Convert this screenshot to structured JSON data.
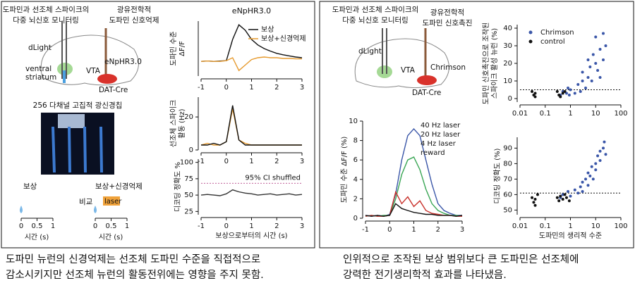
{
  "panels": {
    "left": {
      "title": [
        "도파민과 선조체 스파이크의",
        "다중 뇌신호 모니터링"
      ],
      "condition": [
        "광유전학적",
        "도파민 신호억제"
      ],
      "labels": {
        "sensor": "dLight",
        "region": [
          "ventral",
          "striatum"
        ],
        "opsin": "eNpHR3.0",
        "vta": "VTA",
        "line": "DAT-Cre"
      },
      "chip": "256 다채널 고집적 광신경칩",
      "stim": {
        "reward": "보상",
        "combined": "보상+신경억제",
        "compare": "비교",
        "laser": "laser",
        "xticks": [
          0,
          0.5,
          1
        ],
        "xlabel": "시간 (s)"
      },
      "caption": [
        "도파민 뉴런의 신경억제는 선조체 도파민 수준을 직접적으로",
        "감소시키지만 선조체 뉴런의 활동전위에는 영향을 주지 못함."
      ]
    },
    "right": {
      "title": [
        "도파민과 선조체 스파이크의",
        "다중 뇌신호 모니터링"
      ],
      "condition": [
        "광유전학적",
        "도파민 신호촉진"
      ],
      "labels": {
        "sensor": "dLight",
        "vta": "VTA",
        "opsin": "Chrimson",
        "line": "DAT-Cre"
      },
      "caption": [
        "인위적으로 조작된 보상 범위보다 큰 도파민은 선조체에",
        "강력한 전기생리학적 효과를 나타냈음."
      ]
    }
  },
  "chart_data": [
    {
      "type": "line",
      "title": "eNpHR3.0",
      "ylabel": [
        "도파민 수준",
        "ΔF/F"
      ],
      "legend": "upper right",
      "x": [
        -1,
        -0.75,
        -0.5,
        -0.25,
        0,
        0.25,
        0.5,
        0.75,
        1,
        1.25,
        1.5,
        1.75,
        2,
        2.25,
        2.5,
        2.75,
        3
      ],
      "xlim": [
        -1,
        3
      ],
      "xticks": [
        -1,
        0,
        1,
        2,
        3
      ],
      "ylim": [
        -0.4,
        1.1
      ],
      "series": [
        {
          "name": "보상",
          "color": "#111111",
          "values": [
            0,
            0.01,
            0,
            0.01,
            0.02,
            0.6,
            1.0,
            0.85,
            0.6,
            0.45,
            0.35,
            0.28,
            0.22,
            0.18,
            0.15,
            0.12,
            0.1
          ]
        },
        {
          "name": "보상+신경억제",
          "color": "#e69a2e",
          "values": [
            0,
            0.01,
            0,
            0,
            0.02,
            0.1,
            -0.25,
            -0.1,
            0.05,
            0.1,
            0.12,
            0.1,
            0.1,
            0.08,
            0.08,
            0.07,
            0.07
          ]
        }
      ]
    },
    {
      "type": "line",
      "ylabel": [
        "선조체 스파이크",
        "활동 (Hz)"
      ],
      "x": [
        -1,
        -0.75,
        -0.5,
        -0.25,
        0,
        0.25,
        0.5,
        0.75,
        1,
        1.25,
        1.5,
        1.75,
        2,
        2.25,
        2.5,
        2.75,
        3
      ],
      "xlim": [
        -1,
        3
      ],
      "xticks": [
        -1,
        0,
        1,
        2,
        3
      ],
      "ylim": [
        0,
        32
      ],
      "yticks": [
        0,
        20
      ],
      "series": [
        {
          "color": "#e69a2e",
          "values": [
            3,
            4,
            3,
            3,
            5,
            25,
            6,
            4,
            3,
            3,
            3,
            3,
            3,
            3,
            3,
            3,
            3
          ]
        },
        {
          "color": "#111111",
          "values": [
            3,
            3,
            4,
            3,
            5,
            27,
            6,
            3,
            3,
            3,
            3,
            3,
            3,
            3,
            3,
            3,
            3
          ]
        }
      ]
    },
    {
      "type": "line",
      "ylabel": [
        "디코딩 정확도 %"
      ],
      "xlabel": "보상으로부터의 시간 (s)",
      "x": [
        -1,
        -0.75,
        -0.5,
        -0.25,
        0,
        0.25,
        0.5,
        0.75,
        1,
        1.25,
        1.5,
        1.75,
        2,
        2.25,
        2.5,
        2.75,
        3
      ],
      "xlim": [
        -1,
        3
      ],
      "xticks": [
        -1,
        0,
        1,
        2,
        3
      ],
      "ylim": [
        20,
        105
      ],
      "yticks": [
        25,
        50,
        75,
        100
      ],
      "reference_lines": [
        {
          "value": 68,
          "label": "95% CI shuffled",
          "color": "#c0609a"
        }
      ],
      "series": [
        {
          "color": "#333333",
          "values": [
            50,
            51,
            50,
            49,
            52,
            58,
            55,
            53,
            52,
            50,
            51,
            52,
            50,
            51,
            52,
            50,
            51
          ]
        }
      ]
    },
    {
      "type": "line",
      "ylabel": [
        "도파민 수준 ΔF/F (%)"
      ],
      "legend": "upper right",
      "legend_text_colored": true,
      "x": [
        -1,
        -0.75,
        -0.5,
        -0.25,
        0,
        0.25,
        0.5,
        0.75,
        1,
        1.25,
        1.5,
        1.75,
        2,
        2.25,
        2.5,
        2.75,
        3
      ],
      "xlim": [
        -1,
        3
      ],
      "xticks": [
        -1,
        0,
        1,
        2,
        3
      ],
      "ylim": [
        0,
        10
      ],
      "yticks": [
        0,
        2,
        4,
        6,
        8,
        10
      ],
      "series": [
        {
          "name": "40 Hz laser",
          "color": "#3a56a8",
          "values": [
            0.3,
            0.2,
            0.3,
            0.2,
            0.4,
            2.5,
            6,
            8.5,
            9.2,
            8.5,
            6,
            3.5,
            1.5,
            0.8,
            0.5,
            0.3,
            0.3
          ]
        },
        {
          "name": "20 Hz laser",
          "color": "#3aa655",
          "values": [
            0.2,
            0.3,
            0.2,
            0.3,
            0.3,
            2,
            4.5,
            6,
            6.3,
            5,
            3,
            1.5,
            0.8,
            0.5,
            0.3,
            0.3,
            0.2
          ]
        },
        {
          "name": "4 Hz laser",
          "color": "#c8302a",
          "values": [
            0.2,
            0.3,
            0.2,
            0.2,
            0.3,
            2.7,
            1.5,
            2.2,
            1.2,
            1.8,
            0.8,
            0.5,
            0.4,
            0.3,
            0.3,
            0.2,
            0.2
          ]
        },
        {
          "name": "reward",
          "color": "#111111",
          "values": [
            0.3,
            0.2,
            0.3,
            0.2,
            0.3,
            1.5,
            1,
            0.8,
            0.6,
            0.5,
            0.4,
            0.4,
            0.3,
            0.3,
            0.3,
            0.2,
            0.3
          ]
        }
      ]
    },
    {
      "type": "scatter",
      "ylabel": [
        "도파민 신호촉진으로 조작된",
        "스파이크 활성 뉴런 (%)"
      ],
      "legend": "upper left",
      "xscale": "log",
      "xlim": [
        0.01,
        100
      ],
      "xticks": [
        0.01,
        0.1,
        1,
        10,
        100
      ],
      "ylim": [
        -2,
        42
      ],
      "yticks": [
        0,
        10,
        20,
        30,
        40
      ],
      "reference_lines": [
        {
          "value": 5
        }
      ],
      "series": [
        {
          "name": "Chrimson",
          "color": "#3a56a8",
          "x": [
            0.4,
            0.5,
            0.7,
            0.8,
            0.9,
            1,
            1.5,
            2,
            2.5,
            3,
            3,
            4,
            5,
            5,
            6,
            7,
            8,
            10,
            10,
            12,
            15,
            15,
            20,
            20,
            25
          ],
          "values": [
            2,
            4,
            3,
            6,
            2,
            5,
            3,
            8,
            4,
            10,
            15,
            6,
            12,
            22,
            18,
            10,
            25,
            20,
            35,
            16,
            28,
            12,
            37,
            22,
            30
          ]
        },
        {
          "name": "control",
          "color": "#111111",
          "x": [
            0.03,
            0.035,
            0.04,
            0.04,
            0.3,
            0.35,
            0.4,
            0.5,
            0.6
          ],
          "values": [
            4,
            2,
            1,
            3,
            4,
            2,
            1,
            3,
            4
          ]
        }
      ]
    },
    {
      "type": "scatter",
      "ylabel": [
        "디코딩 정확도 (%)"
      ],
      "xlabel": "도파민의 생리적 수준",
      "xscale": "log",
      "xlim": [
        0.01,
        100
      ],
      "xticks": [
        0.01,
        0.1,
        1,
        10,
        100
      ],
      "ylim": [
        47,
        97
      ],
      "yticks": [
        50,
        60,
        70,
        80,
        90
      ],
      "reference_lines": [
        {
          "value": 61
        }
      ],
      "series": [
        {
          "color": "#3a56a8",
          "x": [
            0.4,
            0.5,
            0.8,
            1,
            1.5,
            2,
            2.5,
            3,
            3,
            4,
            5,
            5,
            6,
            7,
            8,
            10,
            10,
            12,
            15,
            15,
            20,
            22,
            25
          ],
          "values": [
            58,
            60,
            62,
            59,
            63,
            61,
            65,
            68,
            62,
            70,
            66,
            74,
            72,
            78,
            70,
            80,
            76,
            85,
            82,
            88,
            90,
            94,
            86
          ]
        },
        {
          "color": "#111111",
          "x": [
            0.03,
            0.035,
            0.04,
            0.04,
            0.05,
            0.3,
            0.35,
            0.4,
            0.5,
            0.6,
            0.7,
            0.9
          ],
          "values": [
            58,
            55,
            53,
            57,
            60,
            58,
            56,
            59,
            57,
            60,
            58,
            56
          ]
        }
      ]
    }
  ]
}
